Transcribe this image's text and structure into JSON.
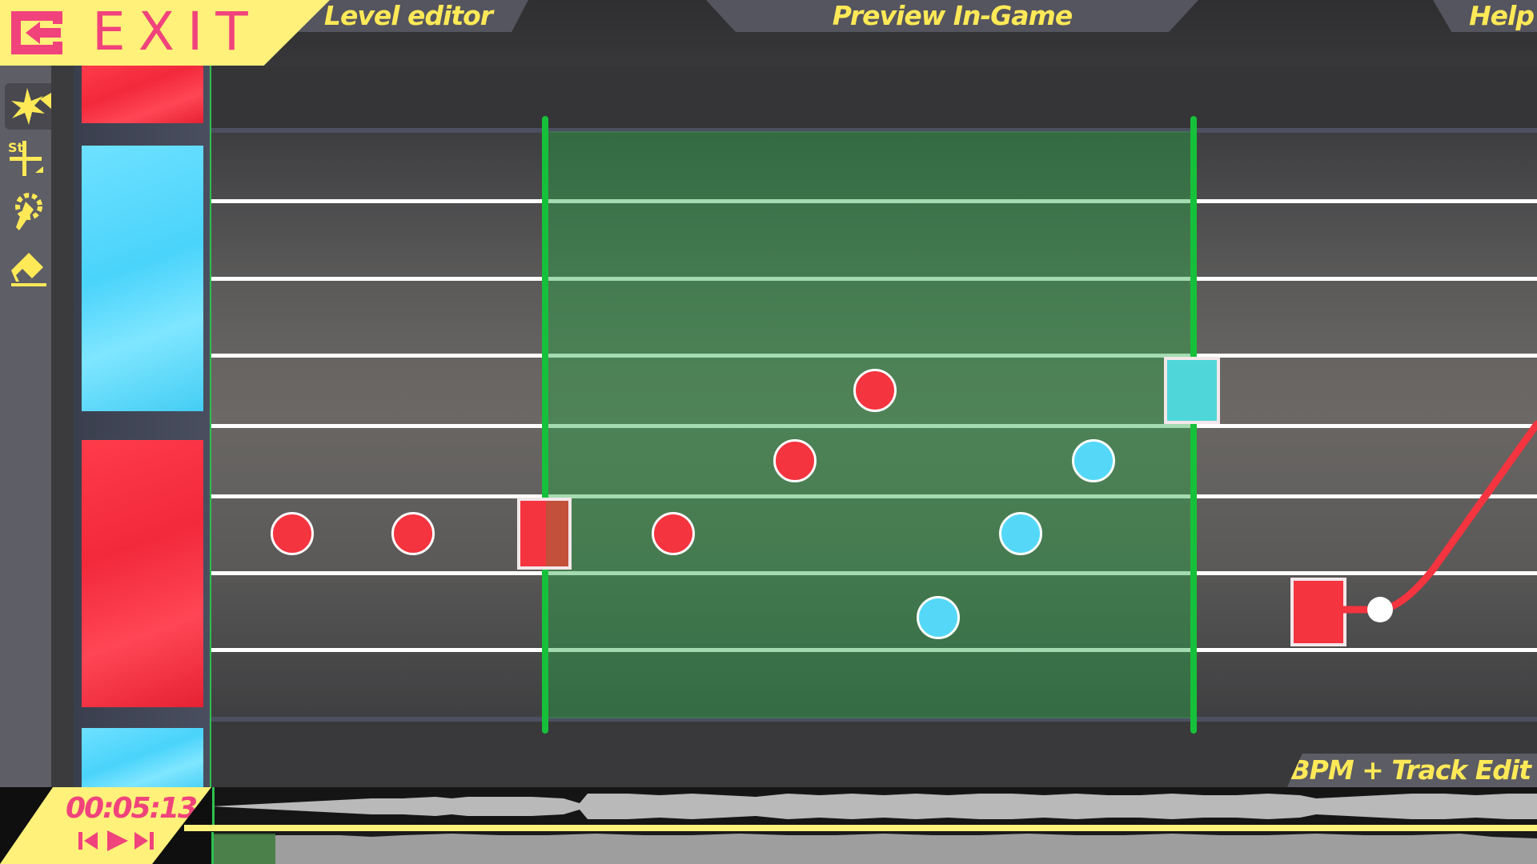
{
  "header": {
    "exit_label": "EXIT",
    "tabs": [
      {
        "label": "Level editor"
      },
      {
        "label": "Preview In-Game"
      },
      {
        "label": "Help"
      }
    ]
  },
  "tools": [
    {
      "icon": "note-place-icon",
      "active": true
    },
    {
      "icon": "stretch-add-icon",
      "badge": "St"
    },
    {
      "icon": "special-note-icon"
    },
    {
      "icon": "eraser-icon"
    }
  ],
  "bottom": {
    "bpm_tab": "BPM + Track Edit",
    "time": "00:05:13"
  },
  "colors": {
    "accent_yellow": "#ffe957",
    "accent_pink": "#f0437c",
    "note_red": "#f4343f",
    "note_blue": "#55d8f7",
    "selection_green": "#17c03a"
  }
}
